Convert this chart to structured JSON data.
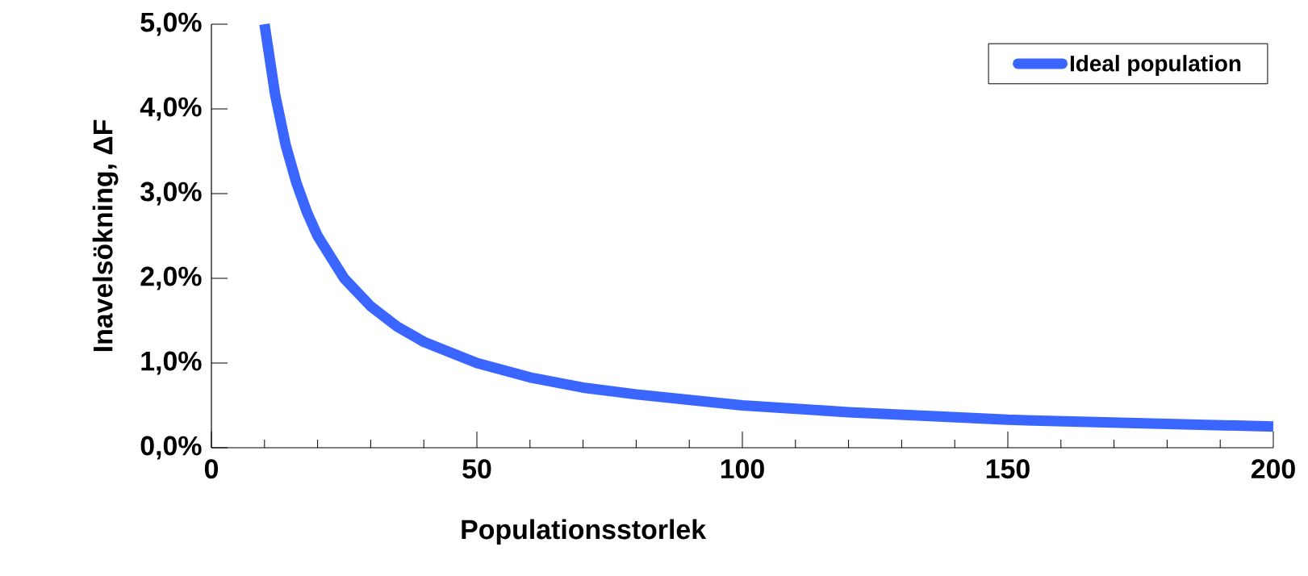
{
  "chart_data": {
    "type": "line",
    "xlabel": "Populationsstorlek",
    "ylabel": "Inavelsökning, ΔF",
    "x": [
      10,
      12,
      14,
      16,
      18,
      20,
      25,
      30,
      35,
      40,
      50,
      60,
      70,
      80,
      100,
      120,
      150,
      175,
      200
    ],
    "series": [
      {
        "name": "Ideal population",
        "color": "#3a66ff",
        "values": [
          5.0,
          4.17,
          3.57,
          3.13,
          2.78,
          2.5,
          2.0,
          1.67,
          1.43,
          1.25,
          1.0,
          0.83,
          0.71,
          0.63,
          0.5,
          0.42,
          0.33,
          0.29,
          0.25
        ]
      }
    ],
    "xlim": [
      0,
      200
    ],
    "ylim": [
      0,
      5
    ],
    "xticks": [
      0,
      50,
      100,
      150,
      200
    ],
    "yticks": [
      {
        "value": 0,
        "label": "0,0%"
      },
      {
        "value": 1,
        "label": "1,0%"
      },
      {
        "value": 2,
        "label": "2,0%"
      },
      {
        "value": 3,
        "label": "3,0%"
      },
      {
        "value": 4,
        "label": "4,0%"
      },
      {
        "value": 5,
        "label": "5,0%"
      }
    ],
    "legend": "top right",
    "marker": "none",
    "line_style": "solid",
    "grid": false
  }
}
